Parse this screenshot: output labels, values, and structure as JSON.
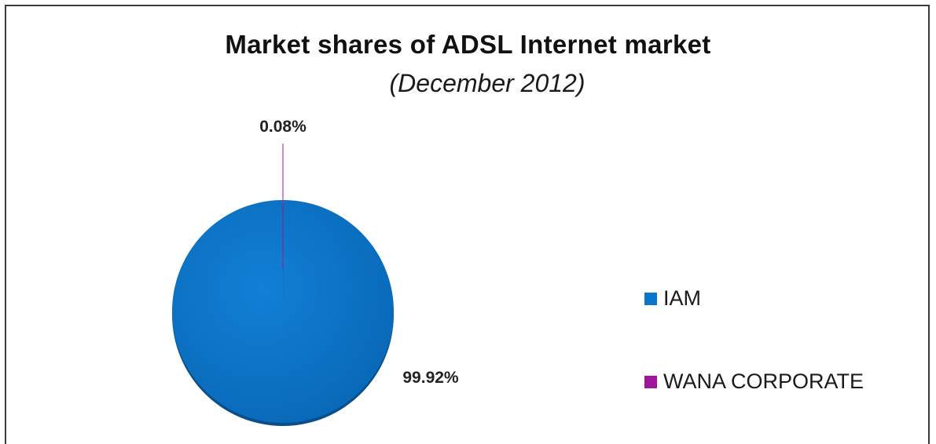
{
  "chart_data": {
    "type": "pie",
    "title": "Market shares of ADSL Internet market",
    "subtitle": "(December 2012)",
    "legend_position": "right",
    "series": [
      {
        "name": "IAM",
        "value": 99.92,
        "label": "99.92%",
        "color": "#0A75C9"
      },
      {
        "name": "WANA CORPORATE",
        "value": 0.08,
        "label": "0.08%",
        "color": "#A0169B"
      }
    ]
  }
}
